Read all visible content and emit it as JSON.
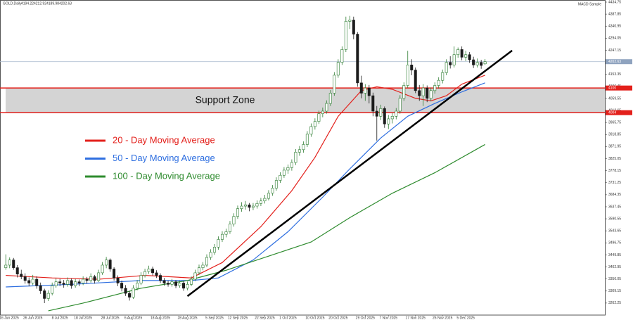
{
  "chart_data": {
    "type": "candlestick",
    "symbol": "GOLD,Daily",
    "indicator": "MACD Sample",
    "up_color": "#2e7d32",
    "down_color": "#1b1b1b",
    "xlim": [
      -1.5,
      155
    ],
    "ylim": [
      3215.35,
      4434.75
    ],
    "grid": false,
    "xticks": [
      {
        "value": 0,
        "label": "16 Jun 2025"
      },
      {
        "value": 7,
        "label": "26 Jun 2025"
      },
      {
        "value": 14,
        "label": "8 Jul 2025"
      },
      {
        "value": 20,
        "label": "18 Jul 2025"
      },
      {
        "value": 27,
        "label": "28 Jul 2025"
      },
      {
        "value": 33,
        "label": "6 Aug 2025"
      },
      {
        "value": 40,
        "label": "18 Aug 2025"
      },
      {
        "value": 47,
        "label": "28 Aug 2025"
      },
      {
        "value": 54,
        "label": "5 Sep 2025"
      },
      {
        "value": 60,
        "label": "12 Sep 2025"
      },
      {
        "value": 67,
        "label": "22 Sep 2025"
      },
      {
        "value": 73,
        "label": "1 Oct 2025"
      },
      {
        "value": 80,
        "label": "10 Oct 2025"
      },
      {
        "value": 86,
        "label": "20 Oct 2025"
      },
      {
        "value": 93,
        "label": "29 Oct 2025"
      },
      {
        "value": 99,
        "label": "7 Nov 2025"
      },
      {
        "value": 106,
        "label": "17 Nov 2025"
      },
      {
        "value": 113,
        "label": "26 Nov 2025"
      },
      {
        "value": 119,
        "label": "5 Dec 2025"
      }
    ],
    "yticks": [
      4434.75,
      4387.85,
      4340.95,
      4294.05,
      4247.15,
      4200.25,
      4153.35,
      4106.45,
      4059.55,
      4012.65,
      3965.75,
      3918.85,
      3871.95,
      3825.05,
      3778.15,
      3731.25,
      3684.35,
      3637.45,
      3590.55,
      3543.65,
      3496.75,
      3449.85,
      3402.95,
      3356.05,
      3309.15,
      3262.25
    ],
    "ohlc": [
      [
        3400,
        3452,
        3392,
        3410
      ],
      [
        3410,
        3440,
        3398,
        3430
      ],
      [
        3430,
        3438,
        3392,
        3400
      ],
      [
        3400,
        3410,
        3362,
        3375
      ],
      [
        3375,
        3392,
        3355,
        3365
      ],
      [
        3365,
        3378,
        3338,
        3350
      ],
      [
        3350,
        3362,
        3328,
        3340
      ],
      [
        3340,
        3372,
        3332,
        3355
      ],
      [
        3355,
        3366,
        3318,
        3330
      ],
      [
        3330,
        3342,
        3298,
        3310
      ],
      [
        3310,
        3318,
        3262,
        3280
      ],
      [
        3280,
        3312,
        3270,
        3300
      ],
      [
        3300,
        3342,
        3292,
        3330
      ],
      [
        3330,
        3358,
        3322,
        3345
      ],
      [
        3345,
        3356,
        3328,
        3340
      ],
      [
        3340,
        3352,
        3322,
        3335
      ],
      [
        3335,
        3362,
        3326,
        3350
      ],
      [
        3350,
        3358,
        3318,
        3330
      ],
      [
        3330,
        3356,
        3322,
        3345
      ],
      [
        3345,
        3354,
        3328,
        3340
      ],
      [
        3340,
        3366,
        3332,
        3355
      ],
      [
        3355,
        3364,
        3338,
        3350
      ],
      [
        3350,
        3378,
        3342,
        3365
      ],
      [
        3365,
        3372,
        3338,
        3350
      ],
      [
        3350,
        3392,
        3344,
        3380
      ],
      [
        3380,
        3422,
        3372,
        3410
      ],
      [
        3410,
        3442,
        3398,
        3430
      ],
      [
        3430,
        3436,
        3384,
        3395
      ],
      [
        3395,
        3402,
        3350,
        3360
      ],
      [
        3360,
        3370,
        3328,
        3340
      ],
      [
        3340,
        3350,
        3308,
        3320
      ],
      [
        3320,
        3332,
        3290,
        3300
      ],
      [
        3300,
        3310,
        3272,
        3285
      ],
      [
        3285,
        3332,
        3278,
        3320
      ],
      [
        3320,
        3352,
        3312,
        3340
      ],
      [
        3340,
        3382,
        3332,
        3370
      ],
      [
        3370,
        3396,
        3362,
        3385
      ],
      [
        3385,
        3408,
        3376,
        3395
      ],
      [
        3395,
        3404,
        3370,
        3380
      ],
      [
        3380,
        3390,
        3360,
        3370
      ],
      [
        3370,
        3378,
        3340,
        3350
      ],
      [
        3350,
        3360,
        3330,
        3340
      ],
      [
        3340,
        3350,
        3326,
        3335
      ],
      [
        3335,
        3356,
        3326,
        3345
      ],
      [
        3345,
        3352,
        3320,
        3330
      ],
      [
        3330,
        3350,
        3322,
        3340
      ],
      [
        3340,
        3348,
        3310,
        3320
      ],
      [
        3320,
        3346,
        3312,
        3335
      ],
      [
        3335,
        3366,
        3328,
        3355
      ],
      [
        3355,
        3392,
        3348,
        3380
      ],
      [
        3380,
        3412,
        3372,
        3400
      ],
      [
        3400,
        3422,
        3390,
        3410
      ],
      [
        3410,
        3452,
        3402,
        3440
      ],
      [
        3440,
        3472,
        3430,
        3460
      ],
      [
        3460,
        3492,
        3450,
        3480
      ],
      [
        3480,
        3522,
        3470,
        3510
      ],
      [
        3510,
        3542,
        3500,
        3530
      ],
      [
        3530,
        3552,
        3518,
        3540
      ],
      [
        3540,
        3582,
        3532,
        3570
      ],
      [
        3570,
        3612,
        3560,
        3600
      ],
      [
        3600,
        3642,
        3590,
        3630
      ],
      [
        3630,
        3655,
        3618,
        3640
      ],
      [
        3640,
        3660,
        3626,
        3645
      ],
      [
        3645,
        3652,
        3620,
        3635
      ],
      [
        3635,
        3652,
        3624,
        3640
      ],
      [
        3640,
        3662,
        3630,
        3650
      ],
      [
        3650,
        3672,
        3640,
        3660
      ],
      [
        3660,
        3684,
        3650,
        3670
      ],
      [
        3670,
        3702,
        3662,
        3690
      ],
      [
        3690,
        3722,
        3680,
        3710
      ],
      [
        3710,
        3752,
        3700,
        3740
      ],
      [
        3740,
        3772,
        3730,
        3760
      ],
      [
        3760,
        3792,
        3750,
        3780
      ],
      [
        3780,
        3802,
        3766,
        3790
      ],
      [
        3790,
        3822,
        3778,
        3810
      ],
      [
        3810,
        3862,
        3800,
        3850
      ],
      [
        3850,
        3874,
        3836,
        3860
      ],
      [
        3860,
        3892,
        3848,
        3880
      ],
      [
        3880,
        3932,
        3870,
        3920
      ],
      [
        3920,
        3962,
        3910,
        3950
      ],
      [
        3950,
        3982,
        3938,
        3970
      ],
      [
        3970,
        4012,
        3960,
        4000
      ],
      [
        4000,
        4024,
        3986,
        4010
      ],
      [
        4010,
        4052,
        4000,
        4040
      ],
      [
        4040,
        4092,
        4030,
        4080
      ],
      [
        4080,
        4162,
        4070,
        4150
      ],
      [
        4150,
        4212,
        4140,
        4200
      ],
      [
        4200,
        4262,
        4190,
        4250
      ],
      [
        4250,
        4378,
        4240,
        4360
      ],
      [
        4360,
        4381,
        4330,
        4365
      ],
      [
        4365,
        4378,
        4290,
        4310
      ],
      [
        4310,
        4318,
        4105,
        4120
      ],
      [
        4120,
        4148,
        4060,
        4080
      ],
      [
        4080,
        4115,
        4050,
        4100
      ],
      [
        4100,
        4112,
        4040,
        4070
      ],
      [
        4070,
        4082,
        3990,
        4010
      ],
      [
        4010,
        4030,
        3895,
        3990
      ],
      [
        3990,
        4035,
        3975,
        4020
      ],
      [
        4020,
        4028,
        3945,
        3960
      ],
      [
        3960,
        3995,
        3940,
        3980
      ],
      [
        3980,
        4002,
        3962,
        3990
      ],
      [
        3990,
        4022,
        3978,
        4010
      ],
      [
        4010,
        4072,
        4000,
        4060
      ],
      [
        4060,
        4122,
        4050,
        4110
      ],
      [
        4110,
        4245,
        4100,
        4190
      ],
      [
        4190,
        4212,
        4150,
        4170
      ],
      [
        4170,
        4180,
        4080,
        4090
      ],
      [
        4090,
        4112,
        4050,
        4070
      ],
      [
        4070,
        4115,
        4030,
        4100
      ],
      [
        4100,
        4110,
        4045,
        4060
      ],
      [
        4060,
        4102,
        4048,
        4090
      ],
      [
        4090,
        4122,
        4078,
        4110
      ],
      [
        4110,
        4142,
        4098,
        4130
      ],
      [
        4130,
        4172,
        4118,
        4160
      ],
      [
        4160,
        4212,
        4150,
        4200
      ],
      [
        4200,
        4224,
        4176,
        4190
      ],
      [
        4190,
        4262,
        4180,
        4230
      ],
      [
        4230,
        4258,
        4218,
        4250
      ],
      [
        4250,
        4262,
        4208,
        4220
      ],
      [
        4220,
        4245,
        4205,
        4230
      ],
      [
        4230,
        4240,
        4198,
        4210
      ],
      [
        4210,
        4222,
        4178,
        4190
      ],
      [
        4190,
        4215,
        4180,
        4200
      ],
      [
        4200,
        4210,
        4175,
        4188
      ],
      [
        4194.22,
        4212.92,
        4189.98,
        4202.63
      ]
    ],
    "series": [
      {
        "name": "20 - Day Moving Average",
        "color": "#e3201b",
        "x": [
          0,
          12,
          24,
          36,
          48,
          56,
          66,
          74,
          80,
          86,
          92,
          96,
          100,
          106,
          110,
          114,
          118,
          124
        ],
        "values": [
          3370,
          3360,
          3355,
          3370,
          3360,
          3420,
          3560,
          3700,
          3830,
          3990,
          4090,
          4105,
          4095,
          4060,
          4050,
          4070,
          4115,
          4150
        ]
      },
      {
        "name": "50 - Day Moving Average",
        "color": "#2f6fe0",
        "x": [
          0,
          17,
          35,
          48,
          55,
          64,
          73,
          82,
          89,
          97,
          104,
          111,
          118,
          124
        ],
        "values": [
          3325,
          3335,
          3350,
          3350,
          3360,
          3430,
          3540,
          3675,
          3785,
          3905,
          3990,
          4040,
          4085,
          4120
        ]
      },
      {
        "name": "100 - Day Moving Average",
        "color": "#2e8b2e",
        "x": [
          11,
          20,
          35,
          47,
          57,
          68,
          79,
          89,
          100,
          111,
          124
        ],
        "values": [
          3232,
          3262,
          3320,
          3350,
          3390,
          3445,
          3500,
          3595,
          3690,
          3770,
          3880
        ]
      }
    ],
    "trendline": {
      "x": [
        47,
        131
      ],
      "values": [
        3289,
        4246
      ]
    },
    "support_zone": {
      "label": "Support Zone",
      "upper": 4100,
      "lower": 4004
    }
  }
}
